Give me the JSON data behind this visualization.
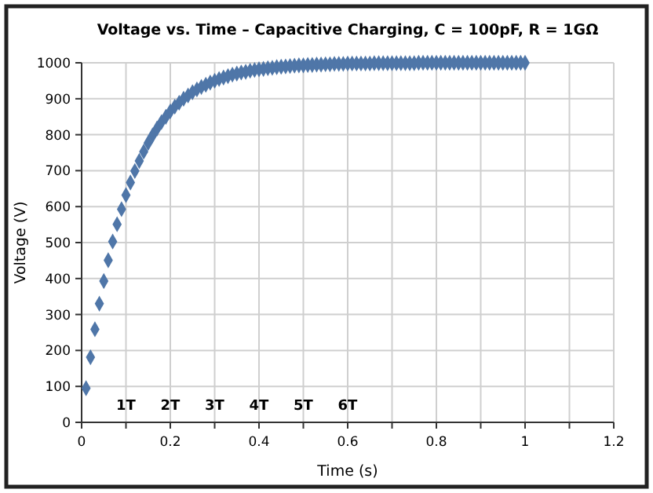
{
  "chart_data": {
    "type": "scatter",
    "title": "Voltage vs. Time – Capacitive Charging, C = 100pF, R = 1GΩ",
    "xlabel": "Time (s)",
    "ylabel": "Voltage (V)",
    "x": [
      0.01,
      0.02,
      0.03,
      0.04,
      0.05,
      0.06,
      0.07,
      0.08,
      0.09,
      0.1,
      0.11,
      0.12,
      0.13,
      0.14,
      0.15,
      0.16,
      0.17,
      0.18,
      0.19,
      0.2,
      0.21,
      0.22,
      0.23,
      0.24,
      0.25,
      0.26,
      0.27,
      0.28,
      0.29,
      0.3,
      0.31,
      0.32,
      0.33,
      0.34,
      0.35,
      0.36,
      0.37,
      0.38,
      0.39,
      0.4,
      0.41,
      0.42,
      0.43,
      0.44,
      0.45,
      0.46,
      0.47,
      0.48,
      0.49,
      0.5,
      0.51,
      0.52,
      0.53,
      0.54,
      0.55,
      0.56,
      0.57,
      0.58,
      0.59,
      0.6,
      0.61,
      0.62,
      0.63,
      0.64,
      0.65,
      0.66,
      0.67,
      0.68,
      0.69,
      0.7,
      0.71,
      0.72,
      0.73,
      0.74,
      0.75,
      0.76,
      0.77,
      0.78,
      0.79,
      0.8,
      0.81,
      0.82,
      0.83,
      0.84,
      0.85,
      0.86,
      0.87,
      0.88,
      0.89,
      0.9,
      0.91,
      0.92,
      0.93,
      0.94,
      0.95,
      0.96,
      0.97,
      0.98,
      0.99,
      1.0
    ],
    "series": [
      {
        "color": "#4f76a8",
        "values": [
          95,
          181,
          259,
          330,
          393,
          451,
          503,
          551,
          593,
          632,
          667,
          699,
          727,
          753,
          777,
          798,
          817,
          835,
          850,
          865,
          878,
          889,
          900,
          909,
          918,
          926,
          933,
          939,
          945,
          950,
          955,
          959,
          963,
          967,
          970,
          973,
          975,
          978,
          980,
          982,
          983,
          985,
          986,
          988,
          989,
          990,
          991,
          992,
          993,
          993,
          994,
          994,
          995,
          995,
          996,
          996,
          997,
          997,
          997,
          998,
          998,
          998,
          998,
          998,
          998,
          999,
          999,
          999,
          999,
          999,
          999,
          999,
          999,
          999,
          999,
          1000,
          1000,
          1000,
          1000,
          1000,
          1000,
          1000,
          1000,
          1000,
          1000,
          1000,
          1000,
          1000,
          1000,
          1000,
          1000,
          1000,
          1000,
          1000,
          1000,
          1000,
          1000,
          1000,
          1000,
          1000
        ]
      }
    ],
    "xlim": [
      0,
      1.2
    ],
    "xticks": [
      0,
      {
        "value": 0.1,
        "label": null
      },
      0.2,
      {
        "value": 0.3,
        "label": null
      },
      0.4,
      {
        "value": 0.5,
        "label": null
      },
      0.6,
      {
        "value": 0.7,
        "label": null
      },
      0.8,
      {
        "value": 0.9,
        "label": null
      },
      1.0,
      {
        "value": 1.1,
        "label": null
      },
      1.2
    ],
    "ylim": [
      0,
      1000
    ],
    "yticks": [
      0,
      100,
      200,
      300,
      400,
      500,
      600,
      700,
      800,
      900,
      1000
    ],
    "grid": true,
    "marker": "diamond",
    "annotations": [
      "1T",
      "2T",
      "3T",
      "4T",
      "5T",
      "6T"
    ]
  }
}
